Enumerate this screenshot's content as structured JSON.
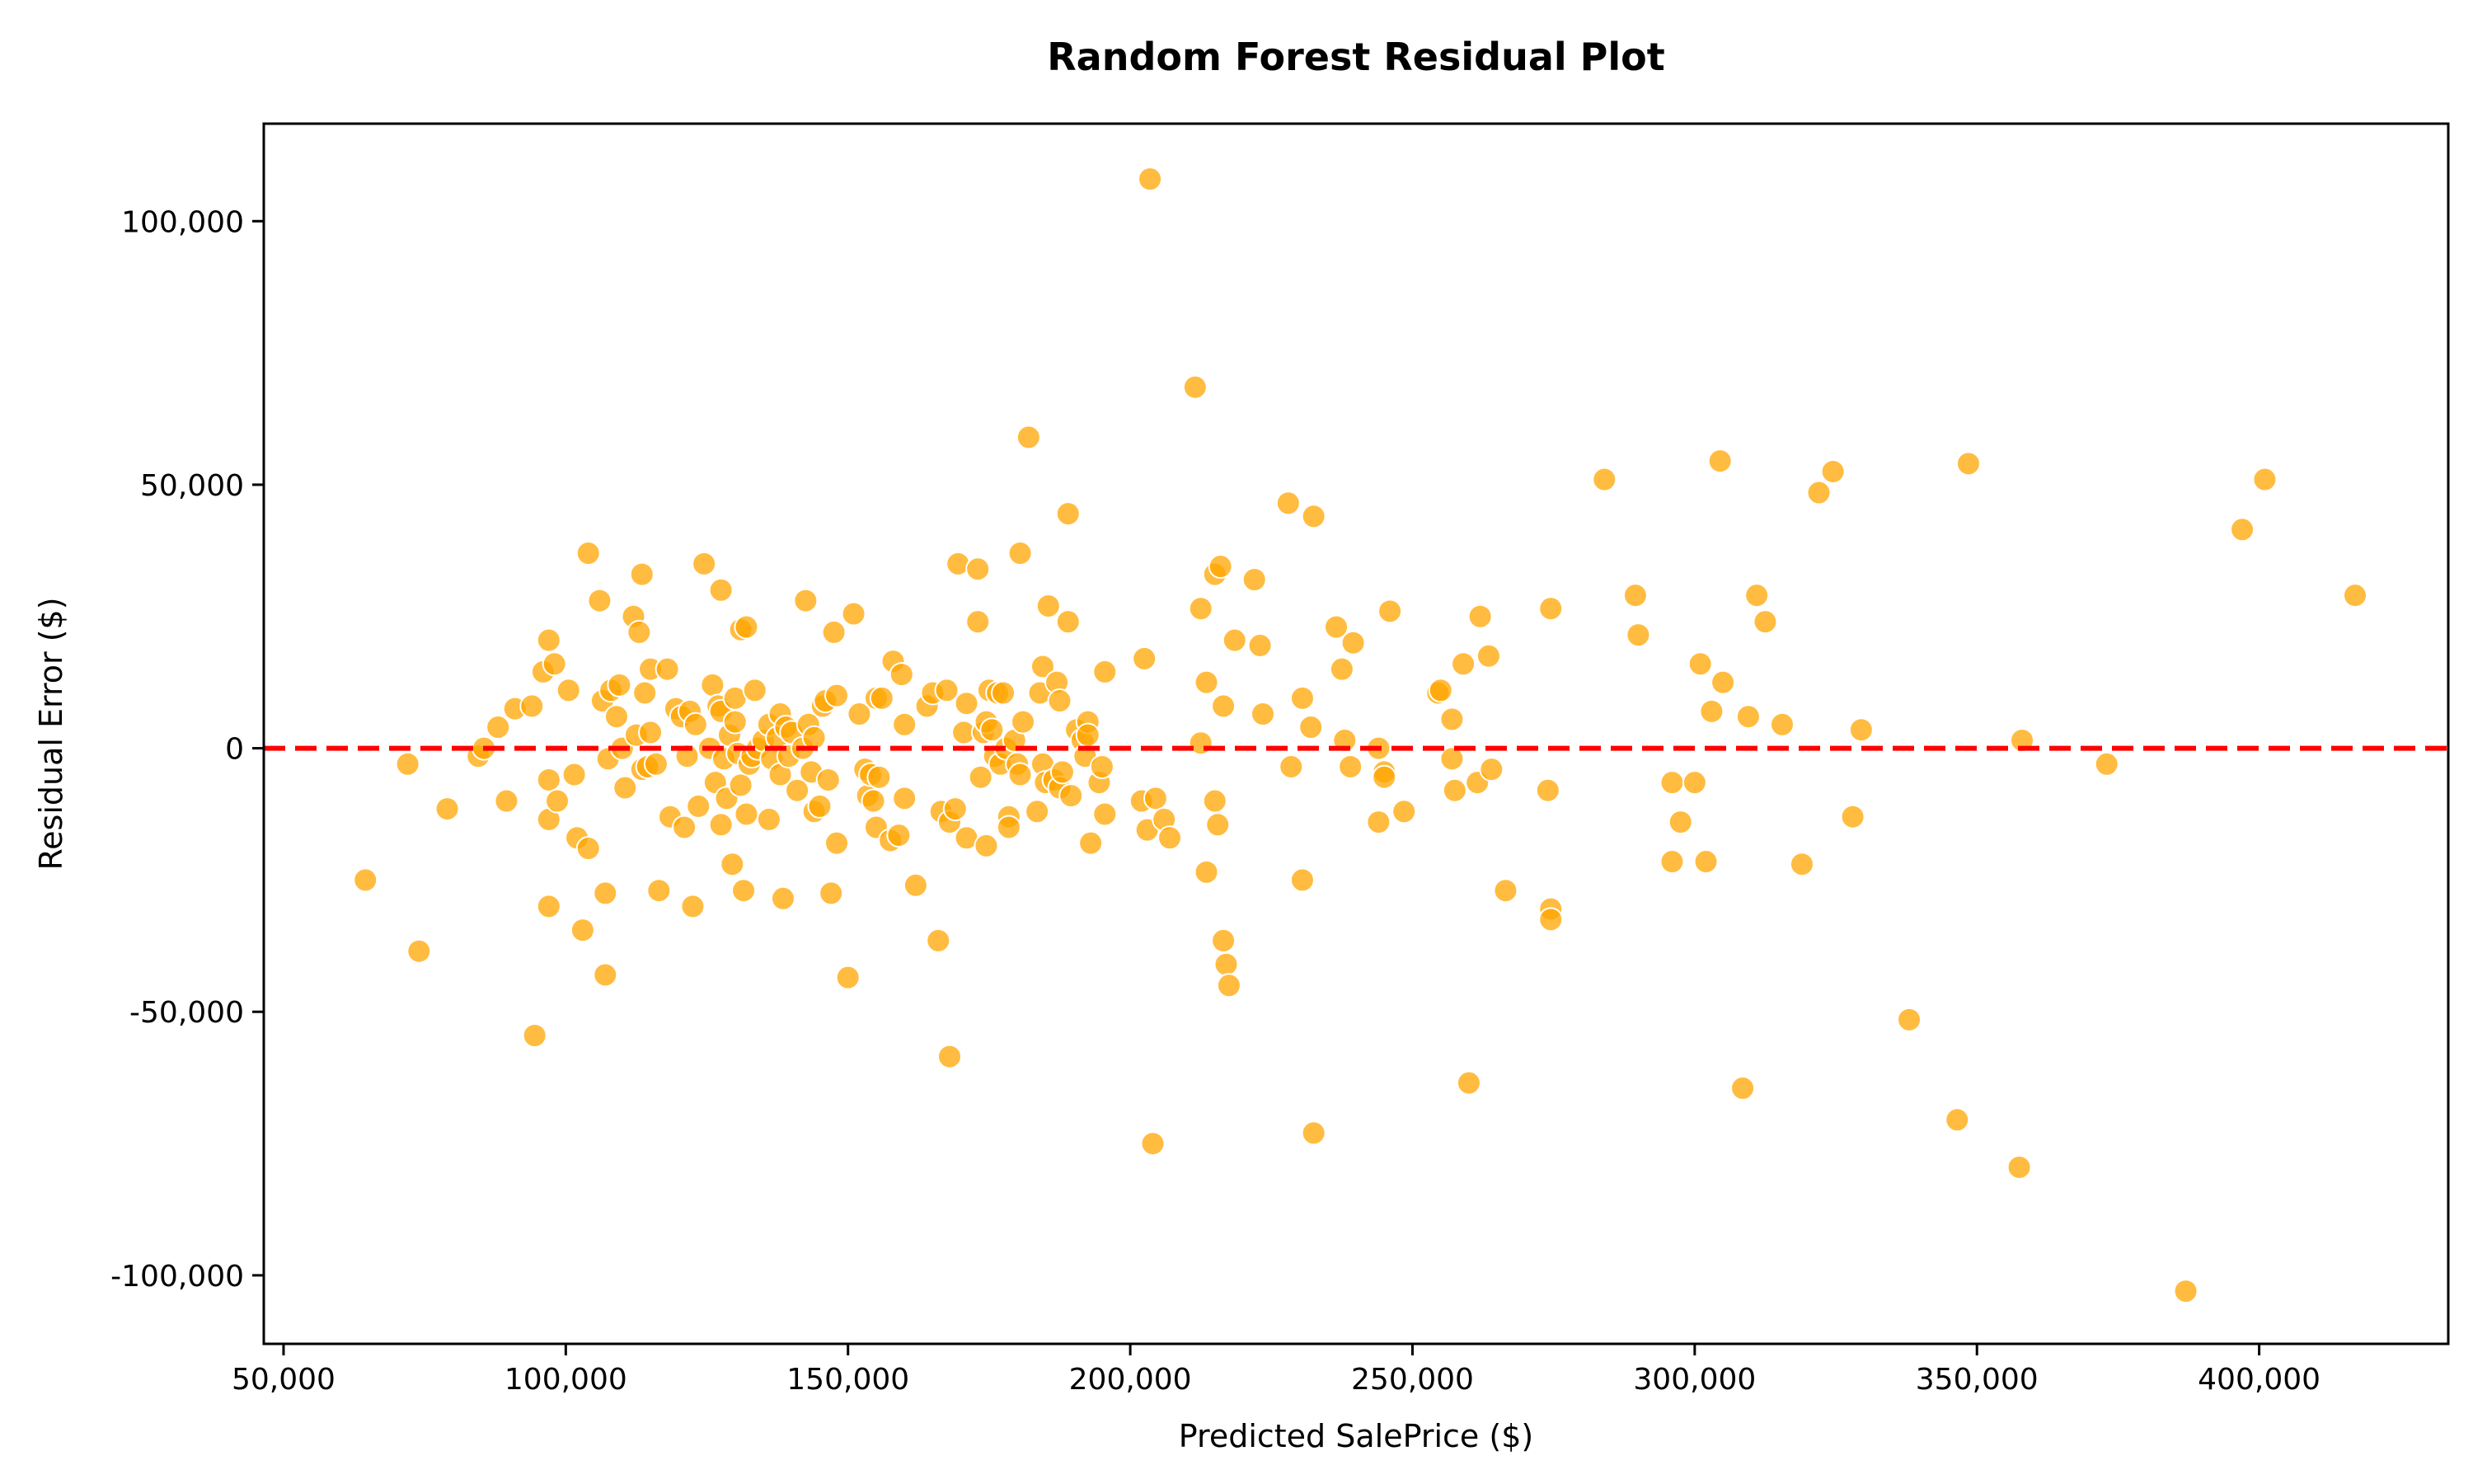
{
  "chart_data": {
    "type": "scatter",
    "title": "Random Forest Residual Plot",
    "xlabel": "Predicted SalePrice ($)",
    "ylabel": "Residual Error ($)",
    "xlim": [
      46500,
      433500
    ],
    "ylim": [
      -113000,
      118500
    ],
    "xticks": [
      50000,
      100000,
      150000,
      200000,
      250000,
      300000,
      350000,
      400000
    ],
    "xtick_labels": [
      "50,000",
      "100,000",
      "150,000",
      "200,000",
      "250,000",
      "300,000",
      "350,000",
      "400,000"
    ],
    "yticks": [
      -100000,
      -50000,
      0,
      50000,
      100000
    ],
    "ytick_labels": [
      "-100,000",
      "-50,000",
      "0",
      "50,000",
      "100,000"
    ],
    "grid": false,
    "reference_line": {
      "y": 0,
      "style": "dashed",
      "color": "#ff0000"
    },
    "marker_color": "#ffa500",
    "marker_edge_color": "#ffffff",
    "points": [
      [
        64500,
        -25000
      ],
      [
        72000,
        -3000
      ],
      [
        74000,
        -38500
      ],
      [
        79000,
        -11500
      ],
      [
        84500,
        -1500
      ],
      [
        85500,
        0
      ],
      [
        88000,
        4000
      ],
      [
        89500,
        -10000
      ],
      [
        91000,
        7500
      ],
      [
        94000,
        8000
      ],
      [
        94500,
        -54500
      ],
      [
        96000,
        14500
      ],
      [
        97000,
        20500
      ],
      [
        97000,
        -6000
      ],
      [
        97000,
        -13500
      ],
      [
        97000,
        -30000
      ],
      [
        98000,
        16000
      ],
      [
        98500,
        -10000
      ],
      [
        100500,
        11000
      ],
      [
        101500,
        -5000
      ],
      [
        102000,
        -17000
      ],
      [
        103000,
        -34500
      ],
      [
        104000,
        37000
      ],
      [
        104000,
        -19000
      ],
      [
        106000,
        28000
      ],
      [
        106500,
        9000
      ],
      [
        107000,
        -27500
      ],
      [
        107000,
        -43000
      ],
      [
        107500,
        -2000
      ],
      [
        108000,
        11000
      ],
      [
        109000,
        6000
      ],
      [
        109500,
        12000
      ],
      [
        110000,
        0
      ],
      [
        110500,
        -7500
      ],
      [
        112000,
        25000
      ],
      [
        112500,
        2500
      ],
      [
        113000,
        22000
      ],
      [
        113500,
        -4000
      ],
      [
        113500,
        33000
      ],
      [
        114000,
        10500
      ],
      [
        114500,
        -3500
      ],
      [
        115000,
        15000
      ],
      [
        115000,
        3000
      ],
      [
        116000,
        -3000
      ],
      [
        116500,
        -27000
      ],
      [
        118000,
        15000
      ],
      [
        118500,
        -13000
      ],
      [
        119500,
        7500
      ],
      [
        120500,
        6000
      ],
      [
        121000,
        -15000
      ],
      [
        121500,
        -1500
      ],
      [
        122000,
        7000
      ],
      [
        122500,
        -30000
      ],
      [
        123000,
        4500
      ],
      [
        123500,
        -11000
      ],
      [
        124500,
        35000
      ],
      [
        125500,
        0
      ],
      [
        126000,
        12000
      ],
      [
        126500,
        -6500
      ],
      [
        127000,
        8000
      ],
      [
        127500,
        30000
      ],
      [
        127500,
        7000
      ],
      [
        127500,
        -14500
      ],
      [
        128000,
        -2000
      ],
      [
        128500,
        -9500
      ],
      [
        129000,
        2500
      ],
      [
        129500,
        -22000
      ],
      [
        130000,
        9500
      ],
      [
        130000,
        5000
      ],
      [
        130500,
        -1000
      ],
      [
        131000,
        22500
      ],
      [
        131000,
        -7000
      ],
      [
        131500,
        -27000
      ],
      [
        132000,
        23000
      ],
      [
        132000,
        -12500
      ],
      [
        132500,
        -3000
      ],
      [
        133000,
        -1500
      ],
      [
        133500,
        11000
      ],
      [
        134000,
        0
      ],
      [
        135000,
        1500
      ],
      [
        136000,
        4500
      ],
      [
        136000,
        -13500
      ],
      [
        136500,
        -2000
      ],
      [
        137500,
        2000
      ],
      [
        138000,
        6500
      ],
      [
        138000,
        -5000
      ],
      [
        138500,
        -28500
      ],
      [
        139000,
        4000
      ],
      [
        139500,
        -1500
      ],
      [
        140000,
        3000
      ],
      [
        141000,
        -8000
      ],
      [
        142000,
        0
      ],
      [
        142500,
        28000
      ],
      [
        143000,
        4500
      ],
      [
        143500,
        -4500
      ],
      [
        144000,
        -12000
      ],
      [
        144000,
        2000
      ],
      [
        145000,
        -11000
      ],
      [
        145500,
        8000
      ],
      [
        146000,
        9000
      ],
      [
        146500,
        -6000
      ],
      [
        147000,
        -27500
      ],
      [
        147500,
        22000
      ],
      [
        148000,
        10000
      ],
      [
        148000,
        -18000
      ],
      [
        150000,
        -43500
      ],
      [
        151000,
        25500
      ],
      [
        152000,
        6500
      ],
      [
        153000,
        -4000
      ],
      [
        153500,
        -9000
      ],
      [
        154000,
        -5000
      ],
      [
        154500,
        -10000
      ],
      [
        155000,
        9500
      ],
      [
        155000,
        -15000
      ],
      [
        155500,
        -5500
      ],
      [
        156000,
        9500
      ],
      [
        157500,
        -17500
      ],
      [
        158000,
        16500
      ],
      [
        159000,
        -16500
      ],
      [
        159500,
        14000
      ],
      [
        160000,
        4500
      ],
      [
        160000,
        -9500
      ],
      [
        162000,
        -26000
      ],
      [
        164000,
        8000
      ],
      [
        165000,
        10500
      ],
      [
        166000,
        -36500
      ],
      [
        166500,
        -12000
      ],
      [
        167500,
        11000
      ],
      [
        168000,
        -14000
      ],
      [
        168000,
        -58500
      ],
      [
        169000,
        -11500
      ],
      [
        169500,
        35000
      ],
      [
        170500,
        3000
      ],
      [
        171000,
        8500
      ],
      [
        171000,
        -17000
      ],
      [
        173000,
        34000
      ],
      [
        173000,
        24000
      ],
      [
        173500,
        -5500
      ],
      [
        174000,
        3000
      ],
      [
        174500,
        5000
      ],
      [
        174500,
        -18500
      ],
      [
        175000,
        11000
      ],
      [
        175500,
        3500
      ],
      [
        176000,
        -1500
      ],
      [
        176500,
        10500
      ],
      [
        177000,
        -3000
      ],
      [
        177500,
        10500
      ],
      [
        178000,
        0
      ],
      [
        178500,
        -13000
      ],
      [
        178500,
        -15000
      ],
      [
        179500,
        1500
      ],
      [
        180000,
        -3000
      ],
      [
        180500,
        -5000
      ],
      [
        180500,
        37000
      ],
      [
        181000,
        5000
      ],
      [
        182000,
        59000
      ],
      [
        183500,
        -12000
      ],
      [
        184000,
        10500
      ],
      [
        184500,
        15500
      ],
      [
        184500,
        -3000
      ],
      [
        185000,
        -6500
      ],
      [
        185500,
        27000
      ],
      [
        186500,
        -6000
      ],
      [
        187000,
        12500
      ],
      [
        187500,
        -7500
      ],
      [
        187500,
        9000
      ],
      [
        188000,
        -4500
      ],
      [
        189000,
        44500
      ],
      [
        189000,
        24000
      ],
      [
        189500,
        -9000
      ],
      [
        190500,
        3500
      ],
      [
        191500,
        1500
      ],
      [
        192000,
        -1500
      ],
      [
        192500,
        5000
      ],
      [
        192500,
        2500
      ],
      [
        193000,
        -18000
      ],
      [
        194500,
        -6500
      ],
      [
        195000,
        -3500
      ],
      [
        195500,
        -12500
      ],
      [
        195500,
        14500
      ],
      [
        202000,
        -10000
      ],
      [
        202500,
        17000
      ],
      [
        203000,
        -15500
      ],
      [
        203500,
        108000
      ],
      [
        204000,
        -75000
      ],
      [
        204500,
        -9500
      ],
      [
        206000,
        -13500
      ],
      [
        207000,
        -17000
      ],
      [
        211500,
        68500
      ],
      [
        212500,
        26500
      ],
      [
        212500,
        1000
      ],
      [
        213500,
        12500
      ],
      [
        213500,
        -23500
      ],
      [
        215000,
        33000
      ],
      [
        215000,
        -10000
      ],
      [
        215500,
        -14500
      ],
      [
        216000,
        34500
      ],
      [
        216500,
        -36500
      ],
      [
        216500,
        8000
      ],
      [
        217000,
        -41000
      ],
      [
        217500,
        -45000
      ],
      [
        218500,
        20500
      ],
      [
        222000,
        32000
      ],
      [
        223000,
        19500
      ],
      [
        223500,
        6500
      ],
      [
        228000,
        46500
      ],
      [
        228500,
        -3500
      ],
      [
        230500,
        9500
      ],
      [
        230500,
        -25000
      ],
      [
        232000,
        4000
      ],
      [
        232500,
        -73000
      ],
      [
        232500,
        44000
      ],
      [
        236500,
        23000
      ],
      [
        237500,
        15000
      ],
      [
        238000,
        1500
      ],
      [
        239000,
        -3500
      ],
      [
        239500,
        20000
      ],
      [
        244000,
        0
      ],
      [
        244000,
        -14000
      ],
      [
        245000,
        -4500
      ],
      [
        245000,
        -5500
      ],
      [
        246000,
        26000
      ],
      [
        248500,
        -12000
      ],
      [
        254500,
        10500
      ],
      [
        255000,
        11000
      ],
      [
        257000,
        5500
      ],
      [
        257000,
        -2000
      ],
      [
        257500,
        -8000
      ],
      [
        259000,
        16000
      ],
      [
        260000,
        -63500
      ],
      [
        261500,
        -6500
      ],
      [
        262000,
        25000
      ],
      [
        263500,
        17500
      ],
      [
        264000,
        -4000
      ],
      [
        266500,
        -27000
      ],
      [
        274000,
        -8000
      ],
      [
        274500,
        26500
      ],
      [
        274500,
        -30500
      ],
      [
        274500,
        -32500
      ],
      [
        284000,
        51000
      ],
      [
        289500,
        29000
      ],
      [
        290000,
        21500
      ],
      [
        296000,
        -21500
      ],
      [
        296000,
        -6500
      ],
      [
        297500,
        -14000
      ],
      [
        300000,
        -6500
      ],
      [
        301000,
        16000
      ],
      [
        302000,
        -21500
      ],
      [
        303000,
        7000
      ],
      [
        304500,
        54500
      ],
      [
        305000,
        12500
      ],
      [
        308500,
        -64500
      ],
      [
        309500,
        6000
      ],
      [
        311000,
        29000
      ],
      [
        312500,
        24000
      ],
      [
        315500,
        4500
      ],
      [
        319000,
        -22000
      ],
      [
        322000,
        48500
      ],
      [
        324500,
        52500
      ],
      [
        328000,
        -13000
      ],
      [
        329500,
        3500
      ],
      [
        338000,
        -51500
      ],
      [
        346500,
        -70500
      ],
      [
        348500,
        54000
      ],
      [
        357500,
        -79500
      ],
      [
        358000,
        1500
      ],
      [
        373000,
        -3000
      ],
      [
        387000,
        -103000
      ],
      [
        397000,
        41500
      ],
      [
        401000,
        51000
      ],
      [
        417000,
        29000
      ]
    ]
  }
}
